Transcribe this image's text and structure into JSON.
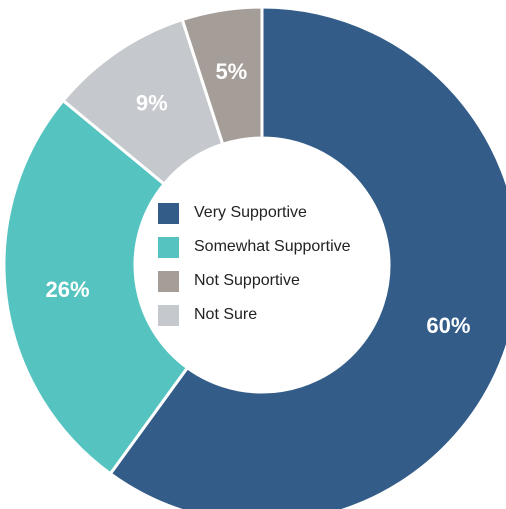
{
  "chart_data": {
    "type": "pie",
    "donut": true,
    "legend_placement": "center",
    "slices": [
      {
        "name": "Very Supportive",
        "value": 60,
        "label": "60%",
        "color": "#335c88"
      },
      {
        "name": "Somewhat Supportive",
        "value": 26,
        "label": "26%",
        "color": "#55c4c0"
      },
      {
        "name": "Not Sure",
        "value": 9,
        "label": "9%",
        "color": "#c5c8cc"
      },
      {
        "name": "Not Supportive",
        "value": 5,
        "label": "5%",
        "color": "#a59d98"
      }
    ],
    "legend": [
      {
        "label": "Very Supportive",
        "color": "#335c88"
      },
      {
        "label": "Somewhat Supportive",
        "color": "#55c4c0"
      },
      {
        "label": "Not Supportive",
        "color": "#a59d98"
      },
      {
        "label": "Not Sure",
        "color": "#c5c8cc"
      }
    ]
  }
}
